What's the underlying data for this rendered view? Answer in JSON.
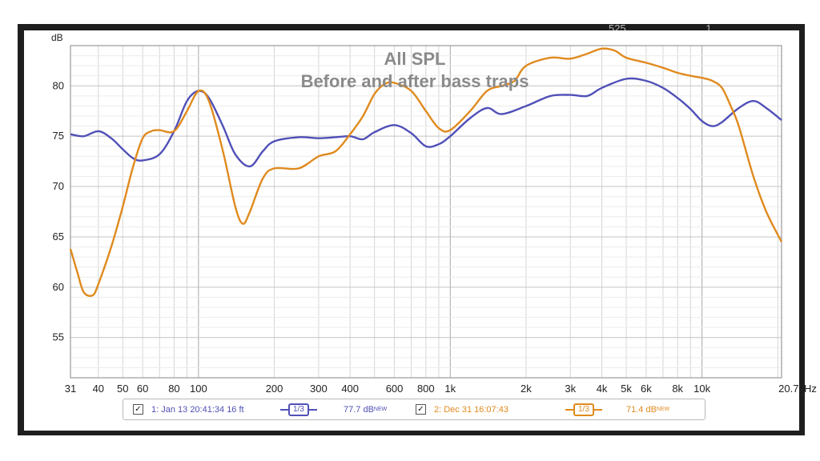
{
  "background": {
    "views": "525",
    "replies": "1"
  },
  "chart_data": {
    "type": "line",
    "title": "All SPL",
    "subtitle": "Before and after bass traps",
    "ylabel": "dB",
    "xlabel": "",
    "x_scale": "log",
    "xlim": [
      31,
      20700
    ],
    "ylim": [
      51,
      84
    ],
    "grid": true,
    "y_ticks": [
      55,
      60,
      65,
      70,
      75,
      80
    ],
    "x_ticks": [
      {
        "v": 31,
        "label": "31"
      },
      {
        "v": 40,
        "label": "40"
      },
      {
        "v": 50,
        "label": "50"
      },
      {
        "v": 60,
        "label": "60"
      },
      {
        "v": 80,
        "label": "80"
      },
      {
        "v": 100,
        "label": "100"
      },
      {
        "v": 200,
        "label": "200"
      },
      {
        "v": 300,
        "label": "300"
      },
      {
        "v": 400,
        "label": "400"
      },
      {
        "v": 600,
        "label": "600"
      },
      {
        "v": 800,
        "label": "800"
      },
      {
        "v": 1000,
        "label": "1k"
      },
      {
        "v": 2000,
        "label": "2k"
      },
      {
        "v": 3000,
        "label": "3k"
      },
      {
        "v": 4000,
        "label": "4k"
      },
      {
        "v": 5000,
        "label": "5k"
      },
      {
        "v": 6000,
        "label": "6k"
      },
      {
        "v": 8000,
        "label": "8k"
      },
      {
        "v": 10000,
        "label": "10k"
      },
      {
        "v": 20700,
        "label": "20.7kHz"
      }
    ],
    "series": [
      {
        "name": "1: Jan 13 20:41:34 16 ft",
        "color": "#5050b8",
        "x": [
          31,
          35,
          40,
          45,
          50,
          55,
          60,
          70,
          80,
          90,
          100,
          110,
          125,
          140,
          160,
          180,
          200,
          250,
          300,
          350,
          400,
          450,
          500,
          600,
          700,
          800,
          900,
          1000,
          1200,
          1400,
          1600,
          2000,
          2500,
          3000,
          3500,
          4000,
          5000,
          6000,
          7000,
          8000,
          9000,
          10000,
          11000,
          12000,
          14000,
          16000,
          18000,
          20700
        ],
        "y": [
          75.2,
          75.0,
          75.5,
          74.8,
          73.7,
          72.8,
          72.6,
          73.2,
          75.5,
          78.5,
          79.5,
          78.8,
          76.0,
          73.2,
          72.0,
          73.5,
          74.5,
          74.9,
          74.8,
          74.9,
          75.0,
          74.7,
          75.4,
          76.1,
          75.3,
          74.0,
          74.2,
          75.0,
          76.8,
          77.8,
          77.2,
          78.0,
          79.0,
          79.1,
          79.0,
          79.8,
          80.7,
          80.5,
          79.8,
          78.8,
          77.7,
          76.5,
          76.0,
          76.4,
          77.8,
          78.5,
          77.8,
          76.6
        ]
      },
      {
        "name": "2: Dec 31 16:07:43",
        "color": "#e08a1e",
        "x": [
          31,
          33,
          35,
          38,
          40,
          45,
          50,
          55,
          60,
          65,
          70,
          80,
          90,
          100,
          110,
          125,
          140,
          150,
          160,
          180,
          200,
          250,
          300,
          350,
          400,
          450,
          500,
          550,
          600,
          700,
          800,
          900,
          1000,
          1200,
          1400,
          1600,
          1800,
          2000,
          2500,
          3000,
          3500,
          4000,
          4500,
          5000,
          6000,
          7000,
          8000,
          9000,
          10000,
          11000,
          12000,
          13000,
          14000,
          16000,
          18000,
          20700
        ],
        "y": [
          63.8,
          61.5,
          59.5,
          59.2,
          60.3,
          64.0,
          68.0,
          72.0,
          74.8,
          75.5,
          75.6,
          75.5,
          77.5,
          79.5,
          78.5,
          73.5,
          68.0,
          66.3,
          67.5,
          70.8,
          71.8,
          71.8,
          73.0,
          73.5,
          75.2,
          77.0,
          79.2,
          80.2,
          80.3,
          79.5,
          77.5,
          75.8,
          75.6,
          77.5,
          79.5,
          80.0,
          80.5,
          82.0,
          82.8,
          82.7,
          83.2,
          83.7,
          83.5,
          82.8,
          82.3,
          81.8,
          81.3,
          81.0,
          80.8,
          80.5,
          79.8,
          78.0,
          76.0,
          71.0,
          67.5,
          64.5
        ]
      }
    ]
  },
  "legend": [
    {
      "label": "1: Jan 13 20:41:34 16 ft",
      "checked": "✓",
      "smoothing": "1/3",
      "level": "77.7 dB",
      "badge": "NEW",
      "color": "#5050b8"
    },
    {
      "label": "2: Dec 31 16:07:43",
      "checked": "✓",
      "smoothing": "1/3",
      "level": "71.4 dB",
      "badge": "NEW",
      "color": "#e08a1e"
    }
  ]
}
